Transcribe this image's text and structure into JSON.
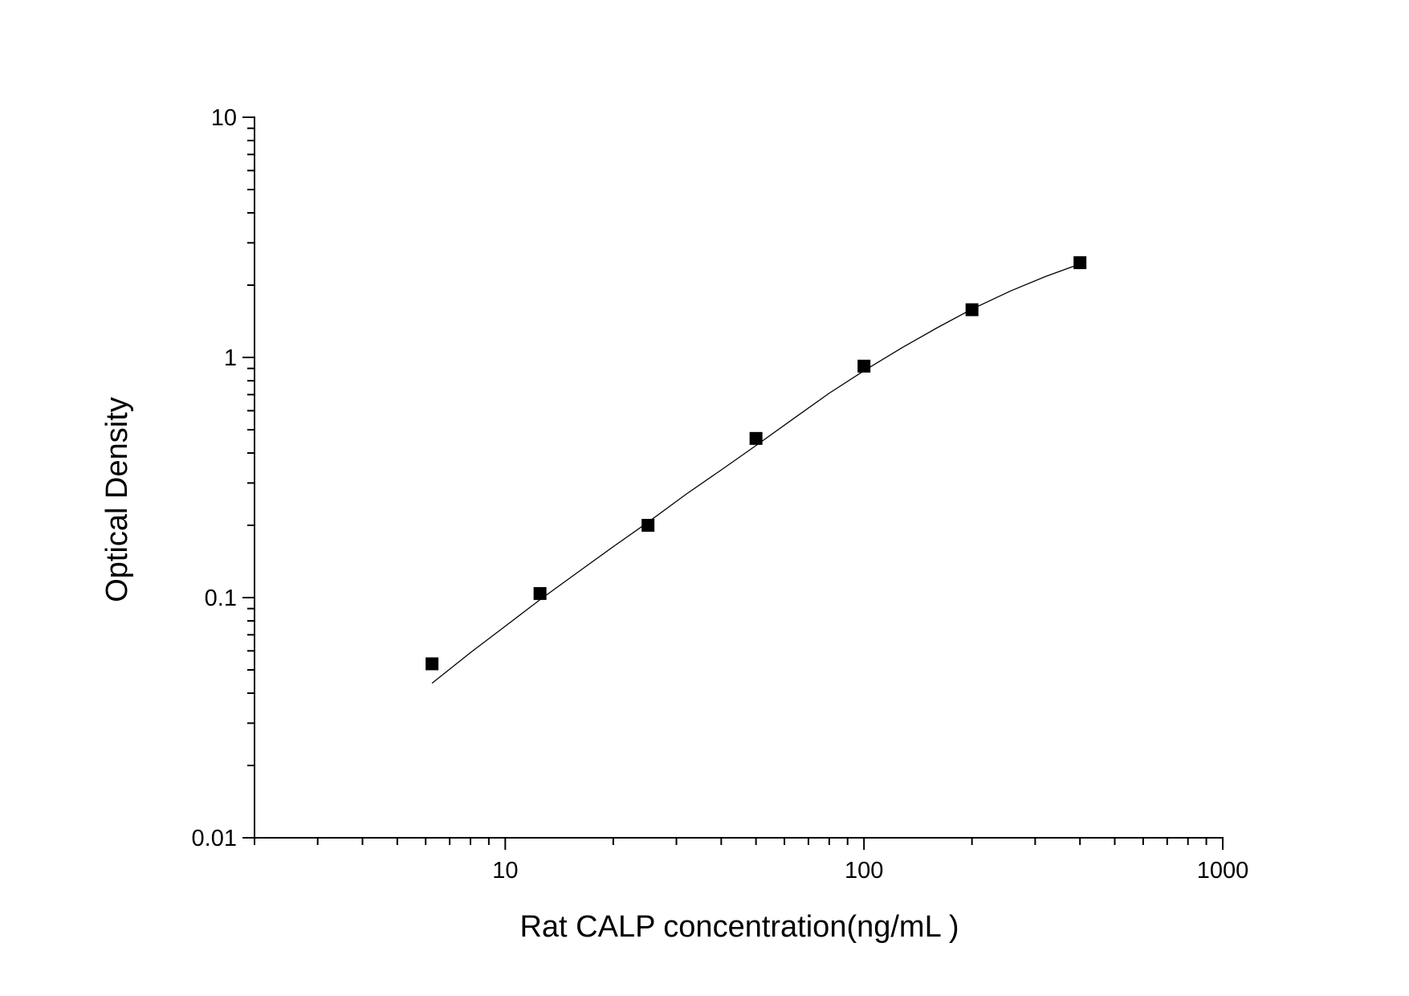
{
  "chart_data": {
    "type": "scatter",
    "title": "",
    "xlabel": "Rat CALP concentration(ng/mL )",
    "ylabel": "Optical Density",
    "xscale": "log",
    "yscale": "log",
    "xlim": [
      2,
      1000
    ],
    "ylim": [
      0.01,
      10
    ],
    "x_ticks": [
      {
        "value": 10,
        "label": "10"
      },
      {
        "value": 100,
        "label": "100"
      },
      {
        "value": 1000,
        "label": "1000"
      }
    ],
    "y_ticks": [
      {
        "value": 0.01,
        "label": "0.01"
      },
      {
        "value": 0.1,
        "label": "0.1"
      },
      {
        "value": 1,
        "label": "1"
      },
      {
        "value": 10,
        "label": "10"
      }
    ],
    "grid": false,
    "legend": "none",
    "series": [
      {
        "x": [
          6.25,
          12.5,
          25,
          50,
          100,
          200,
          400
        ],
        "y": [
          0.053,
          0.104,
          0.2,
          0.46,
          0.92,
          1.58,
          2.48
        ],
        "marker": "square",
        "color": "#000000"
      }
    ],
    "fit_curve": {
      "x": [
        6.25,
        8,
        10,
        12.5,
        16,
        20,
        25,
        32,
        40,
        50,
        64,
        80,
        100,
        128,
        160,
        200,
        256,
        320,
        400
      ],
      "y": [
        0.044,
        0.059,
        0.076,
        0.098,
        0.128,
        0.163,
        0.206,
        0.27,
        0.34,
        0.43,
        0.56,
        0.71,
        0.88,
        1.1,
        1.33,
        1.59,
        1.89,
        2.17,
        2.45
      ],
      "color": "#000000"
    }
  }
}
